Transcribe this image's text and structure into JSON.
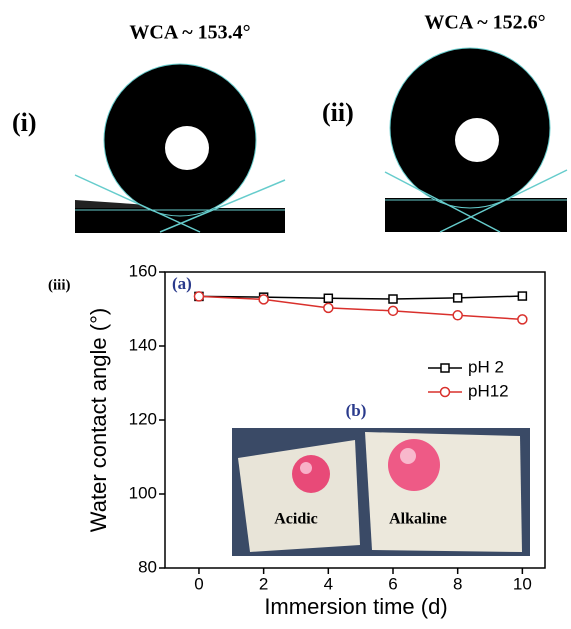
{
  "panels": [
    {
      "label": "(i)",
      "caption": "WCA ~ 153.4°"
    },
    {
      "label": "(ii)",
      "caption": "WCA ~ 152.6°"
    }
  ],
  "chart_data": {
    "type": "line",
    "panel_label": "(iii)",
    "inset_label": "(a)",
    "x_label": "Immersion time (d)",
    "y_label": "Water contact angle (°)",
    "x": [
      0,
      2,
      4,
      6,
      8,
      10
    ],
    "series": [
      {
        "name": "pH 2",
        "color": "#000000",
        "marker": "square",
        "values": [
          153.4,
          153.2,
          152.9,
          152.7,
          153.0,
          153.5
        ]
      },
      {
        "name": "pH12",
        "color": "#d9302c",
        "marker": "circle",
        "values": [
          153.4,
          152.6,
          150.3,
          149.5,
          148.3,
          147.2
        ]
      }
    ],
    "xlim": [
      -1.05,
      10.7
    ],
    "xticks": [
      0,
      2,
      4,
      6,
      8,
      10
    ],
    "ylim": [
      80,
      160
    ],
    "yticks": [
      80,
      100,
      120,
      140,
      160
    ],
    "grid": false,
    "legend": "right",
    "photo": {
      "label": "(b)",
      "left": "Acidic",
      "right": "Alkaline"
    }
  }
}
